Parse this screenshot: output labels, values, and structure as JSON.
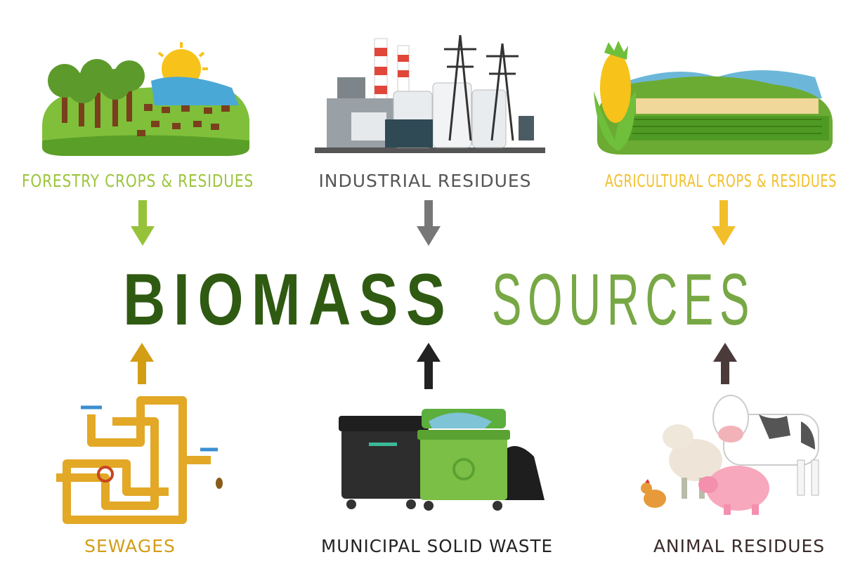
{
  "title": {
    "bold": "BIOMASS",
    "light": "SOURCES"
  },
  "sources": [
    {
      "label": "FORESTRY CROPS & RESIDUES"
    },
    {
      "label": "INDUSTRIAL RESIDUES"
    },
    {
      "label": "AGRICULTURAL CROPS & RESIDUES"
    },
    {
      "label": "SEWAGES"
    },
    {
      "label": "MUNICIPAL SOLID WASTE"
    },
    {
      "label": "ANIMAL RESIDUES"
    }
  ]
}
